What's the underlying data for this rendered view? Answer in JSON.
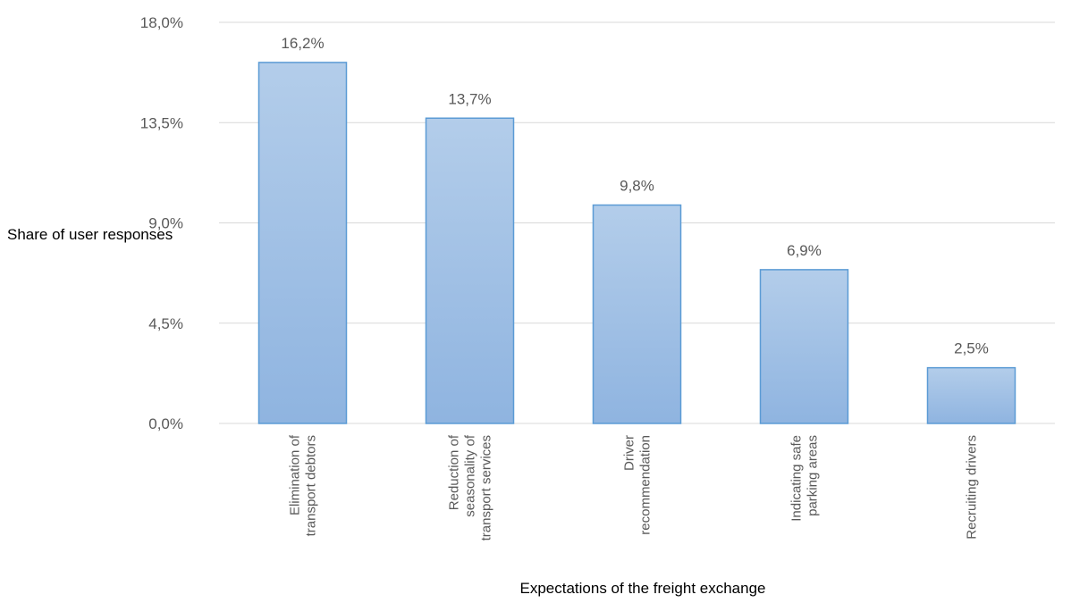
{
  "chart_data": {
    "type": "bar",
    "categories": [
      [
        "Elimination of",
        "transport debtors"
      ],
      [
        "Reduction of",
        "seasonality of",
        "transport services"
      ],
      [
        "Driver",
        "recommendation"
      ],
      [
        "Indicating safe",
        "parking areas"
      ],
      [
        "Recruiting drivers"
      ]
    ],
    "values": [
      16.2,
      13.7,
      9.8,
      6.9,
      2.5
    ],
    "data_labels": [
      "16,2%",
      "13,7%",
      "9,8%",
      "6,9%",
      "2,5%"
    ],
    "ylim": [
      0,
      18
    ],
    "yticks": [
      0,
      4.5,
      9,
      13.5,
      18
    ],
    "ytick_labels": [
      "0,0%",
      "4,5%",
      "9,0%",
      "13,5%",
      "18,0%"
    ],
    "xlabel": "Expectations of the freight exchange",
    "ylabel": "Share of user responses",
    "grid": true,
    "legend": "none",
    "colors": {
      "bar_top": "#b3cdea",
      "bar_bottom": "#8fb4e0",
      "bar_border": "#5b9bd5",
      "grid": "#d9d9d9",
      "text": "#595959"
    }
  }
}
